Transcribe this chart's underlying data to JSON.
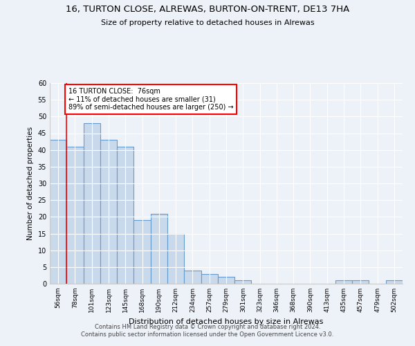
{
  "title1": "16, TURTON CLOSE, ALREWAS, BURTON-ON-TRENT, DE13 7HA",
  "title2": "Size of property relative to detached houses in Alrewas",
  "xlabel": "Distribution of detached houses by size in Alrewas",
  "ylabel": "Number of detached properties",
  "categories": [
    "56sqm",
    "78sqm",
    "101sqm",
    "123sqm",
    "145sqm",
    "168sqm",
    "190sqm",
    "212sqm",
    "234sqm",
    "257sqm",
    "279sqm",
    "301sqm",
    "323sqm",
    "346sqm",
    "368sqm",
    "390sqm",
    "413sqm",
    "435sqm",
    "457sqm",
    "479sqm",
    "502sqm"
  ],
  "values": [
    43,
    41,
    48,
    43,
    41,
    19,
    21,
    15,
    4,
    3,
    2,
    1,
    0,
    0,
    0,
    0,
    0,
    1,
    1,
    0,
    1
  ],
  "bar_color": "#c9d9ec",
  "bar_edge_color": "#6699cc",
  "annotation_text": "16 TURTON CLOSE:  76sqm\n← 11% of detached houses are smaller (31)\n89% of semi-detached houses are larger (250) →",
  "annotation_box_color": "white",
  "annotation_box_edge_color": "red",
  "property_line_color": "red",
  "ylim": [
    0,
    60
  ],
  "yticks": [
    0,
    5,
    10,
    15,
    20,
    25,
    30,
    35,
    40,
    45,
    50,
    55,
    60
  ],
  "footer1": "Contains HM Land Registry data © Crown copyright and database right 2024.",
  "footer2": "Contains public sector information licensed under the Open Government Licence v3.0.",
  "bg_color": "#edf2f9",
  "grid_color": "white"
}
